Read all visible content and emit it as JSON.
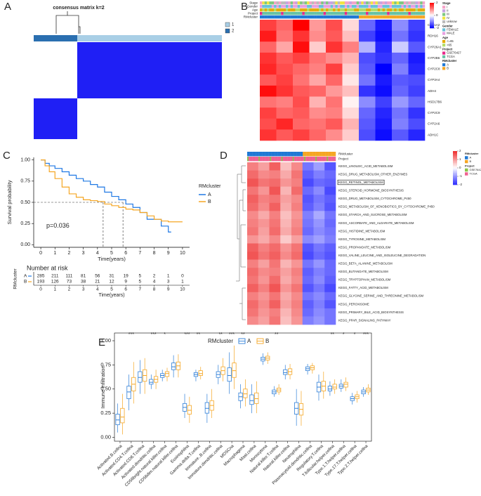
{
  "chart_data": [
    {
      "type": "consensus",
      "panel": "A",
      "title": "consensus matrix k=2",
      "legend": [
        "1",
        "2"
      ],
      "legend_colors": [
        "#a9cfe6",
        "#2a6fb0"
      ],
      "color": "#1f1ff5",
      "values": [
        [
          0,
          1
        ],
        [
          1,
          0
        ]
      ]
    },
    {
      "type": "heatmap",
      "panel": "B",
      "tracks": [
        "Stage",
        "Gender",
        "Age",
        "Project",
        "RMcluster"
      ],
      "rows": [
        "CYP1A2",
        "RDH16",
        "CYP26A1",
        "CYP2B6",
        "CYP2C8",
        "CYP3A4",
        "ADH4",
        "HSD17B6",
        "CYP2C9",
        "CYP2A6",
        "ADH1C"
      ],
      "values": [
        [
          1.5,
          1.2,
          2,
          0.8,
          1.4,
          0.3,
          -1.2,
          -1.8,
          -0.9,
          -1.5
        ],
        [
          1.8,
          1.1,
          1.6,
          0.9,
          1.3,
          0.5,
          -1.5,
          -1.9,
          -1.1,
          -1.6
        ],
        [
          1.2,
          0.7,
          1.9,
          0.4,
          1.6,
          1,
          -0.6,
          -1.7,
          -0.4,
          -1.3
        ],
        [
          1.6,
          1.3,
          1.5,
          1.1,
          0.9,
          0.6,
          -1.4,
          -1.6,
          -1.2,
          -1.8
        ],
        [
          1.7,
          1.4,
          1.2,
          1,
          1.5,
          0.4,
          -1.3,
          -2,
          -1,
          -1.7
        ],
        [
          1.3,
          1.5,
          1.1,
          0.7,
          1.2,
          0.2,
          -1.1,
          -1.8,
          -1.3,
          -1.4
        ],
        [
          1.9,
          1.6,
          1.3,
          1.2,
          0.8,
          0.5,
          -1.6,
          -1.9,
          -1.2,
          -1.5
        ],
        [
          1.1,
          1,
          1.4,
          0.6,
          1.1,
          0.1,
          -0.9,
          -1.5,
          -0.8,
          -1.2
        ],
        [
          1.5,
          1.2,
          1.3,
          0.9,
          1,
          0.3,
          -1.2,
          -1.7,
          -1.1,
          -1.6
        ],
        [
          1.4,
          1.7,
          1.2,
          1.1,
          1.3,
          0.6,
          -1.3,
          -1.8,
          -1,
          -1.4
        ],
        [
          1.6,
          1.3,
          1.5,
          1.2,
          0.9,
          0.4,
          -1.4,
          -1.9,
          -1.3,
          -1.7
        ]
      ],
      "colorbar_ticks": [
        2,
        0,
        -2
      ],
      "low_color": "#0000ff",
      "high_color": "#ff0000",
      "legend_groups": [
        {
          "title": "Stage",
          "items": [
            "I",
            "II",
            "III",
            "IV",
            "unknow"
          ],
          "colors": [
            "#f4a3c8",
            "#c8a2e0",
            "#7fc97f",
            "#f0e442",
            "#bbbbbb"
          ]
        },
        {
          "title": "Gender",
          "items": [
            "FEMALE",
            "MALE"
          ],
          "colors": [
            "#66c2d9",
            "#e7a0e0"
          ]
        },
        {
          "title": "Age",
          "items": [
            "<=65",
            ">65"
          ],
          "colors": [
            "#e6ab02",
            "#b3de69"
          ]
        },
        {
          "title": "Project",
          "items": [
            "GSE76427",
            "TCGA"
          ],
          "colors": [
            "#e7298a",
            "#66c2a5"
          ]
        },
        {
          "title": "RMcluster",
          "items": [
            "A",
            "B"
          ],
          "colors": [
            "#1f78d4",
            "#f5a623"
          ]
        }
      ]
    },
    {
      "type": "survival",
      "panel": "C",
      "xlabel": "Time(years)",
      "ylabel": "Survival probability",
      "annotation": "p=0.036",
      "legend_title": "RMcluster",
      "xlim": [
        -0.5,
        10.5
      ],
      "ylim": [
        -0.03,
        1.03
      ],
      "xticks": [
        0,
        1,
        2,
        3,
        4,
        5,
        6,
        7,
        8,
        9,
        10
      ],
      "yticks": [
        {
          "value": 0,
          "label": "0.00"
        },
        {
          "value": 0.25,
          "label": "0.25"
        },
        {
          "value": 0.5,
          "label": "0.50"
        },
        {
          "value": 0.75,
          "label": "0.75"
        },
        {
          "value": 1,
          "label": "1.00"
        }
      ],
      "reference_y": 0.5,
      "median_survival": [
        5.8,
        4.4
      ],
      "series": [
        {
          "name": "A",
          "color": "#1f78e4",
          "x": [
            0,
            0.3,
            0.6,
            1,
            1.5,
            2,
            2.5,
            3,
            3.5,
            4,
            4.5,
            5,
            5.5,
            6,
            6.5,
            7,
            7.5,
            8,
            8.5,
            9,
            9.2
          ],
          "values": [
            1,
            0.96,
            0.93,
            0.9,
            0.86,
            0.82,
            0.78,
            0.75,
            0.71,
            0.68,
            0.62,
            0.57,
            0.53,
            0.48,
            0.44,
            0.38,
            0.3,
            0.3,
            0.22,
            0.15,
            0.15
          ]
        },
        {
          "name": "B",
          "color": "#f5a623",
          "x": [
            0,
            0.3,
            0.6,
            1,
            1.5,
            2,
            2.5,
            3,
            3.5,
            4,
            4.5,
            5,
            5.5,
            6,
            6.5,
            7,
            7.5,
            8,
            8.5,
            9,
            9.5,
            10
          ],
          "values": [
            1,
            0.93,
            0.86,
            0.78,
            0.68,
            0.6,
            0.56,
            0.53,
            0.52,
            0.51,
            0.48,
            0.46,
            0.44,
            0.42,
            0.41,
            0.38,
            0.34,
            0.3,
            0.28,
            0.27,
            0.27,
            0.27
          ]
        }
      ],
      "risk_table": {
        "title": "Number at risk",
        "ylabel": "RMcluster",
        "xlabel": "Time(years)",
        "rows": [
          [
            285,
            211,
            111,
            81,
            56,
            31,
            19,
            5,
            2,
            1,
            0
          ],
          [
            193,
            126,
            73,
            38,
            21,
            12,
            9,
            5,
            4,
            3,
            1
          ]
        ]
      }
    },
    {
      "type": "heatmap",
      "panel": "D",
      "tracks": [
        "RMcluster",
        "Project"
      ],
      "rows": [
        "KEGG_LINOLEIC_ACID_METABOLISM",
        "KEGG_DRUG_METABOLISM_OTHER_ENZYMES",
        "KEGG_RETINOL_METABOLISM",
        "KEGG_STEROID_HORMONE_BIOSYNTHESIS",
        "KEGG_DRUG_METABOLISM_CYTOCHROME_P450",
        "KEGG_METABOLISM_OF_XENOBIOTICS_BY_CYTOCHROME_P450",
        "KEGG_STARCH_AND_SUCROSE_METABOLISM",
        "KEGG_ASCORBATE_AND_ALDARATE_METABOLISM",
        "KEGG_HISTIDINE_METABOLISM",
        "KEGG_TYROSINE_METABOLISM",
        "KEGG_PROPANOATE_METABOLISM",
        "KEGG_VALINE_LEUCINE_AND_ISOLEUCINE_DEGRADATION",
        "KEGG_BETA_ALANINE_METABOLISM",
        "KEGG_BUTANOATE_METABOLISM",
        "KEGG_TRYPTOPHAN_METABOLISM",
        "KEGG_FATTY_ACID_METABOLISM",
        "KEGG_GLYCINE_SERINE_AND_THREONINE_METABOLISM",
        "KEGG_PEROXISOME",
        "KEGG_PRIMARY_BILE_ACID_BIOSYNTHESIS",
        "KEGG_PPAR_SIGNALING_PATHWAY"
      ],
      "highlighted_row": "KEGG_RETINOL_METABOLISM",
      "values": [
        [
          1.2,
          0.9,
          1.5,
          0.6,
          1.1,
          -1.3,
          -0.9,
          -1.6
        ],
        [
          1.4,
          1.1,
          1.2,
          0.8,
          1.3,
          -1.5,
          -1.2,
          -1.4
        ],
        [
          1.6,
          1.3,
          1.4,
          1,
          1.2,
          -1.7,
          -1.4,
          -1.5
        ],
        [
          1.3,
          1,
          1.6,
          0.7,
          1.4,
          -1.4,
          -1.1,
          -1.7
        ],
        [
          1.5,
          1.2,
          1.3,
          0.9,
          1.1,
          -1.6,
          -1.3,
          -1.5
        ],
        [
          1.4,
          1.1,
          1.5,
          0.8,
          1.2,
          -1.5,
          -1.2,
          -1.6
        ],
        [
          1.1,
          0.8,
          1.2,
          0.6,
          1,
          -1.2,
          -0.8,
          -1.3
        ],
        [
          1.2,
          1,
          1.3,
          0.7,
          1.1,
          -1.3,
          -1,
          -1.4
        ],
        [
          1.3,
          0.9,
          1.4,
          0.8,
          1.2,
          -1.4,
          -1.1,
          -1.3
        ],
        [
          1,
          0.8,
          1.1,
          0.5,
          0.9,
          -1.1,
          -0.9,
          -1.2
        ],
        [
          1.5,
          1.2,
          1.4,
          1,
          1.3,
          -1.6,
          -1.3,
          -1.5
        ],
        [
          1.6,
          1.3,
          1.5,
          1.1,
          1.4,
          -1.7,
          -1.4,
          -1.6
        ],
        [
          1.2,
          0.9,
          1.3,
          0.7,
          1,
          -1.3,
          -1,
          -1.4
        ],
        [
          1.4,
          1.1,
          1.2,
          0.9,
          1.2,
          -1.5,
          -1.2,
          -1.4
        ],
        [
          1.3,
          1,
          1.4,
          0.8,
          1.1,
          -1.4,
          -1.1,
          -1.5
        ],
        [
          1.5,
          1.2,
          1.6,
          1,
          1.3,
          -1.6,
          -1.3,
          -1.7
        ],
        [
          1.2,
          1,
          1.3,
          0.8,
          1.1,
          -1.3,
          -1.1,
          -1.4
        ],
        [
          1.4,
          1.1,
          1.5,
          0.9,
          1.2,
          -1.5,
          -1.2,
          -1.6
        ],
        [
          1.3,
          1,
          1.2,
          0.7,
          1.1,
          -1.4,
          -1.1,
          -1.3
        ],
        [
          1.1,
          0.9,
          1.3,
          0.6,
          1,
          -1.2,
          -1,
          -1.3
        ]
      ],
      "colorbar_ticks": [
        2,
        1,
        0,
        -1,
        -2
      ],
      "low_color": "#2a2aff",
      "high_color": "#ee2b2b",
      "legend_groups": [
        {
          "title": "RMcluster",
          "items": [
            "A",
            "B"
          ],
          "colors": [
            "#1f78d4",
            "#f5a623"
          ]
        },
        {
          "title": "Project",
          "items": [
            "GSE76427",
            "TCGA"
          ],
          "colors": [
            "#8bc34a",
            "#f06292"
          ]
        }
      ]
    },
    {
      "type": "box",
      "panel": "E",
      "ylabel": "Immune infiltration",
      "legend_title": "RMcluster",
      "ylim": [
        -0.04,
        1.08
      ],
      "yticks": [
        {
          "value": 0,
          "label": "0.00"
        },
        {
          "value": 0.25,
          "label": "0.25"
        },
        {
          "value": 0.5,
          "label": "0.50"
        },
        {
          "value": 0.75,
          "label": "0.75"
        },
        {
          "value": 1,
          "label": "1.00"
        }
      ],
      "categories": [
        "Activated.B.cellna",
        "Activated.CD4.T.cellna",
        "Activated.CD8.T.cellna",
        "Activated.dendritic.cellna",
        "CD56bright.natural.killer.cellna",
        "CD56dim.natural.killer.cellna",
        "Eosinophilna",
        "Gamma.delta.T.cellna",
        "Immature..B.cellna",
        "Immature.dendritic.cellna",
        "MDSCna",
        "Macrophagena",
        "Mast.cellna",
        "Monocytena",
        "Natural.killer.T.cellna",
        "Natural.killer.cellna",
        "Neutrophilna",
        "Plasmacytoid.dendritic.cellna",
        "Regulatory.T.cellna",
        "T.follicular.helper.cellna",
        "Type.1.T.helper.cellna",
        "Type.17.T.helper.cellna",
        "Type.2.T.helper.cellna"
      ],
      "significance": [
        null,
        "***",
        null,
        "***",
        "*",
        null,
        "***",
        "**",
        null,
        "**",
        "***",
        "**",
        null,
        null,
        "**",
        null,
        null,
        null,
        null,
        "**",
        "*",
        "*",
        "***"
      ],
      "series": [
        {
          "name": "A",
          "color": "#2f7fd8",
          "median": [
            0.18,
            0.47,
            0.62,
            0.57,
            0.64,
            0.73,
            0.31,
            0.65,
            0.3,
            0.65,
            0.64,
            0.42,
            0.38,
            0.81,
            0.47,
            0.67,
            0.3,
            0.71,
            0.52,
            0.5,
            0.53,
            0.4,
            0.47
          ],
          "q1": [
            0.13,
            0.4,
            0.57,
            0.55,
            0.62,
            0.7,
            0.27,
            0.63,
            0.25,
            0.62,
            0.58,
            0.38,
            0.34,
            0.79,
            0.45,
            0.65,
            0.24,
            0.69,
            0.47,
            0.48,
            0.51,
            0.38,
            0.45
          ],
          "q3": [
            0.24,
            0.53,
            0.68,
            0.6,
            0.66,
            0.77,
            0.35,
            0.67,
            0.36,
            0.68,
            0.72,
            0.46,
            0.44,
            0.83,
            0.49,
            0.7,
            0.36,
            0.73,
            0.57,
            0.53,
            0.55,
            0.42,
            0.49
          ],
          "low": [
            0.05,
            0.28,
            0.45,
            0.5,
            0.58,
            0.62,
            0.2,
            0.58,
            0.15,
            0.55,
            0.45,
            0.3,
            0.25,
            0.75,
            0.42,
            0.6,
            0.12,
            0.65,
            0.38,
            0.43,
            0.47,
            0.34,
            0.42
          ],
          "high": [
            0.35,
            0.65,
            0.8,
            0.65,
            0.7,
            0.85,
            0.45,
            0.7,
            0.45,
            0.75,
            0.88,
            0.55,
            0.55,
            0.87,
            0.53,
            0.75,
            0.5,
            0.76,
            0.65,
            0.58,
            0.6,
            0.46,
            0.52
          ]
        },
        {
          "name": "B",
          "color": "#f5a623",
          "median": [
            0.21,
            0.55,
            0.64,
            0.6,
            0.66,
            0.74,
            0.28,
            0.66,
            0.33,
            0.69,
            0.69,
            0.45,
            0.4,
            0.82,
            0.49,
            0.68,
            0.29,
            0.72,
            0.53,
            0.52,
            0.55,
            0.42,
            0.49
          ],
          "q1": [
            0.15,
            0.48,
            0.58,
            0.57,
            0.63,
            0.7,
            0.24,
            0.64,
            0.28,
            0.65,
            0.62,
            0.41,
            0.35,
            0.8,
            0.47,
            0.65,
            0.23,
            0.7,
            0.48,
            0.5,
            0.52,
            0.4,
            0.47
          ],
          "q3": [
            0.3,
            0.62,
            0.7,
            0.63,
            0.68,
            0.78,
            0.33,
            0.69,
            0.38,
            0.73,
            0.77,
            0.5,
            0.46,
            0.84,
            0.51,
            0.71,
            0.35,
            0.74,
            0.58,
            0.55,
            0.57,
            0.44,
            0.51
          ],
          "low": [
            0.03,
            0.35,
            0.45,
            0.5,
            0.58,
            0.62,
            0.15,
            0.6,
            0.2,
            0.58,
            0.5,
            0.32,
            0.25,
            0.76,
            0.44,
            0.6,
            0.12,
            0.66,
            0.4,
            0.45,
            0.48,
            0.36,
            0.44
          ],
          "high": [
            0.45,
            0.78,
            0.82,
            0.7,
            0.72,
            0.86,
            0.42,
            0.73,
            0.5,
            0.82,
            0.95,
            0.6,
            0.58,
            0.88,
            0.55,
            0.76,
            0.48,
            0.77,
            0.68,
            0.6,
            0.62,
            0.48,
            0.55
          ]
        }
      ]
    }
  ]
}
